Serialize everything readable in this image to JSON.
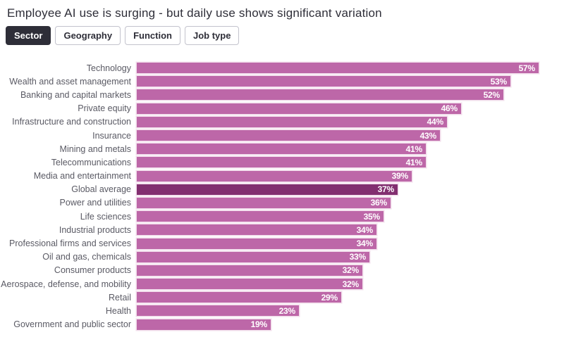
{
  "header": {
    "title": "Employee AI use is surging - but daily use shows significant variation"
  },
  "tabs": [
    {
      "label": "Sector",
      "active": true
    },
    {
      "label": "Geography",
      "active": false
    },
    {
      "label": "Function",
      "active": false
    },
    {
      "label": "Job type",
      "active": false
    }
  ],
  "colors": {
    "bar": "#bd67a8",
    "bar_highlight": "#822f70",
    "bar_halo": "#f2ddeb",
    "tab_active_bg": "#2e2e38",
    "title_text": "#2e2e38",
    "category_text": "#5a5a64",
    "value_text": "#ffffff"
  },
  "chart_data": {
    "type": "bar",
    "orientation": "horizontal",
    "title": "Employee AI use is surging - but daily use shows significant variation",
    "xlabel": "",
    "ylabel": "",
    "xlim": [
      0,
      60
    ],
    "grid": false,
    "legend": false,
    "value_suffix": "%",
    "highlight_category": "Global average",
    "categories": [
      "Technology",
      "Wealth and asset management",
      "Banking and capital markets",
      "Private equity",
      "Infrastructure and construction",
      "Insurance",
      "Mining and metals",
      "Telecommunications",
      "Media and entertainment",
      "Global average",
      "Power and utilities",
      "Life sciences",
      "Industrial products",
      "Professional firms and services",
      "Oil and gas, chemicals",
      "Consumer products",
      "Aerospace, defense, and mobility",
      "Retail",
      "Health",
      "Government and public sector"
    ],
    "values": [
      57,
      53,
      52,
      46,
      44,
      43,
      41,
      41,
      39,
      37,
      36,
      35,
      34,
      34,
      33,
      32,
      32,
      29,
      23,
      19
    ]
  }
}
